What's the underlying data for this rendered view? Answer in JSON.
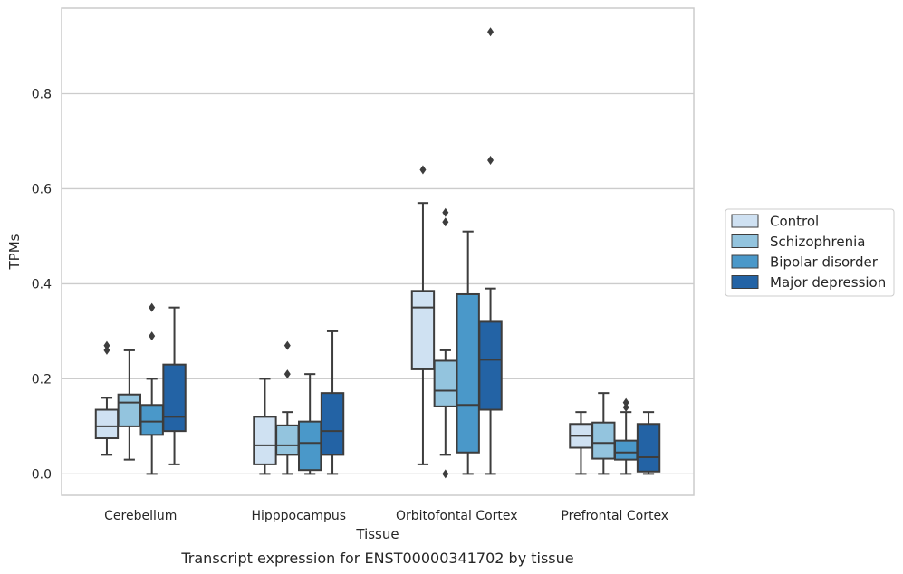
{
  "chart_data": {
    "type": "boxplot",
    "xlabel": "Tissue",
    "ylabel": "TPMs",
    "caption": "Transcript expression for ENST00000341702 by tissue",
    "ylim": [
      -0.045,
      0.98
    ],
    "yticks": [
      0.0,
      0.2,
      0.4,
      0.6,
      0.8
    ],
    "ytick_labels": [
      "0.0",
      "0.2",
      "0.4",
      "0.6",
      "0.8"
    ],
    "grid": "horizontal",
    "legend_position": "right",
    "categories": [
      "Cerebellum",
      "Hipppocampus",
      "Orbitofontal Cortex",
      "Prefrontal Cortex"
    ],
    "series": [
      {
        "name": "Control",
        "color": "#cfe1f2",
        "boxes": [
          {
            "whislo": 0.04,
            "q1": 0.075,
            "med": 0.1,
            "q3": 0.135,
            "whishi": 0.16,
            "fliers": [
              0.26,
              0.27
            ]
          },
          {
            "whislo": 0.0,
            "q1": 0.02,
            "med": 0.06,
            "q3": 0.12,
            "whishi": 0.2,
            "fliers": []
          },
          {
            "whislo": 0.02,
            "q1": 0.22,
            "med": 0.35,
            "q3": 0.385,
            "whishi": 0.57,
            "fliers": [
              0.64
            ]
          },
          {
            "whislo": 0.0,
            "q1": 0.055,
            "med": 0.08,
            "q3": 0.105,
            "whishi": 0.13,
            "fliers": []
          }
        ]
      },
      {
        "name": "Schizophrenia",
        "color": "#93c4de",
        "boxes": [
          {
            "whislo": 0.03,
            "q1": 0.1,
            "med": 0.15,
            "q3": 0.167,
            "whishi": 0.26,
            "fliers": []
          },
          {
            "whislo": 0.0,
            "q1": 0.04,
            "med": 0.06,
            "q3": 0.102,
            "whishi": 0.13,
            "fliers": [
              0.21,
              0.27
            ]
          },
          {
            "whislo": 0.04,
            "q1": 0.142,
            "med": 0.175,
            "q3": 0.238,
            "whishi": 0.26,
            "fliers": [
              0.0,
              0.53,
              0.55
            ]
          },
          {
            "whislo": 0.0,
            "q1": 0.032,
            "med": 0.065,
            "q3": 0.108,
            "whishi": 0.17,
            "fliers": []
          }
        ]
      },
      {
        "name": "Bipolar disorder",
        "color": "#4a98c9",
        "boxes": [
          {
            "whislo": 0.0,
            "q1": 0.082,
            "med": 0.11,
            "q3": 0.145,
            "whishi": 0.2,
            "fliers": [
              0.29,
              0.35
            ]
          },
          {
            "whislo": 0.0,
            "q1": 0.008,
            "med": 0.065,
            "q3": 0.11,
            "whishi": 0.21,
            "fliers": []
          },
          {
            "whislo": 0.0,
            "q1": 0.045,
            "med": 0.145,
            "q3": 0.378,
            "whishi": 0.51,
            "fliers": []
          },
          {
            "whislo": 0.0,
            "q1": 0.03,
            "med": 0.045,
            "q3": 0.07,
            "whishi": 0.13,
            "fliers": [
              0.14,
              0.15
            ]
          }
        ]
      },
      {
        "name": "Major depression",
        "color": "#2363a5",
        "boxes": [
          {
            "whislo": 0.02,
            "q1": 0.09,
            "med": 0.12,
            "q3": 0.23,
            "whishi": 0.35,
            "fliers": []
          },
          {
            "whislo": 0.0,
            "q1": 0.04,
            "med": 0.09,
            "q3": 0.17,
            "whishi": 0.3,
            "fliers": []
          },
          {
            "whislo": 0.0,
            "q1": 0.135,
            "med": 0.24,
            "q3": 0.32,
            "whishi": 0.39,
            "fliers": [
              0.66,
              0.93
            ]
          },
          {
            "whislo": 0.0,
            "q1": 0.005,
            "med": 0.035,
            "q3": 0.105,
            "whishi": 0.13,
            "fliers": []
          }
        ]
      }
    ]
  }
}
